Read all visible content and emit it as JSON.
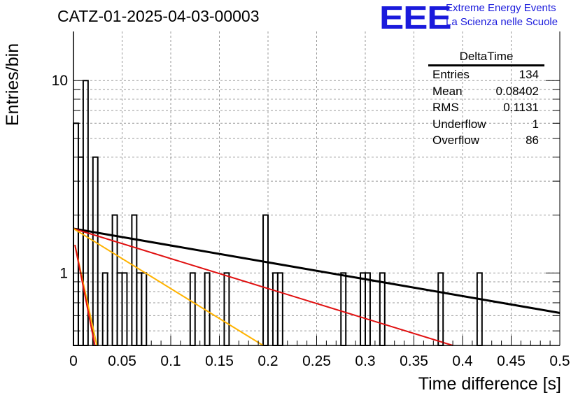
{
  "header": {
    "title": "CATZ-01-2025-04-03-00003",
    "logo_mark": "EEE",
    "logo_line1": "Extreme Energy Events",
    "logo_line2": "La Scienza nelle Scuole"
  },
  "stats_box": {
    "name": "DeltaTime",
    "rows": [
      {
        "label": "Entries",
        "value": "134"
      },
      {
        "label": "Mean",
        "value": "0.08402"
      },
      {
        "label": "RMS",
        "value": "0.1131"
      },
      {
        "label": "Underflow",
        "value": "1"
      },
      {
        "label": "Overflow",
        "value": "86"
      }
    ]
  },
  "chart_data": {
    "type": "bar",
    "histogram": true,
    "xlabel": "Time difference [s]",
    "ylabel": "Entries/bin",
    "xlim": [
      0,
      0.5
    ],
    "ylim": [
      0.42,
      18
    ],
    "yscale": "log",
    "grid": true,
    "bin_width": 0.005,
    "x_ticks": [
      "0",
      "0.05",
      "0.1",
      "0.15",
      "0.2",
      "0.25",
      "0.3",
      "0.35",
      "0.4",
      "0.45",
      "0.5"
    ],
    "y_ticks": [
      "1",
      "10"
    ],
    "bins": [
      {
        "x": 0.0,
        "value": 6
      },
      {
        "x": 0.005,
        "value": 4
      },
      {
        "x": 0.01,
        "value": 10
      },
      {
        "x": 0.02,
        "value": 4
      },
      {
        "x": 0.03,
        "value": 1
      },
      {
        "x": 0.04,
        "value": 2
      },
      {
        "x": 0.045,
        "value": 1
      },
      {
        "x": 0.05,
        "value": 1
      },
      {
        "x": 0.06,
        "value": 2
      },
      {
        "x": 0.065,
        "value": 1
      },
      {
        "x": 0.07,
        "value": 1
      },
      {
        "x": 0.12,
        "value": 1
      },
      {
        "x": 0.135,
        "value": 1
      },
      {
        "x": 0.155,
        "value": 1
      },
      {
        "x": 0.195,
        "value": 2
      },
      {
        "x": 0.205,
        "value": 1
      },
      {
        "x": 0.21,
        "value": 1
      },
      {
        "x": 0.275,
        "value": 1
      },
      {
        "x": 0.295,
        "value": 1
      },
      {
        "x": 0.3,
        "value": 1
      },
      {
        "x": 0.315,
        "value": 1
      },
      {
        "x": 0.375,
        "value": 1
      },
      {
        "x": 0.415,
        "value": 1
      }
    ],
    "series": [
      {
        "color": "#000000",
        "x": [
          0,
          0.5
        ],
        "values": [
          1.7,
          0.62
        ]
      },
      {
        "color": "#e01010",
        "x": [
          0,
          0.39
        ],
        "values": [
          1.7,
          0.42
        ]
      },
      {
        "color": "#ffb300",
        "x": [
          0,
          0.195
        ],
        "values": [
          1.7,
          0.42
        ]
      },
      {
        "color": "#ffb300",
        "x": [
          0.0015,
          0.024
        ],
        "values": [
          1.4,
          0.42
        ]
      },
      {
        "color": "#e01010",
        "x": [
          0.0015,
          0.022
        ],
        "values": [
          1.4,
          0.42
        ]
      }
    ]
  }
}
